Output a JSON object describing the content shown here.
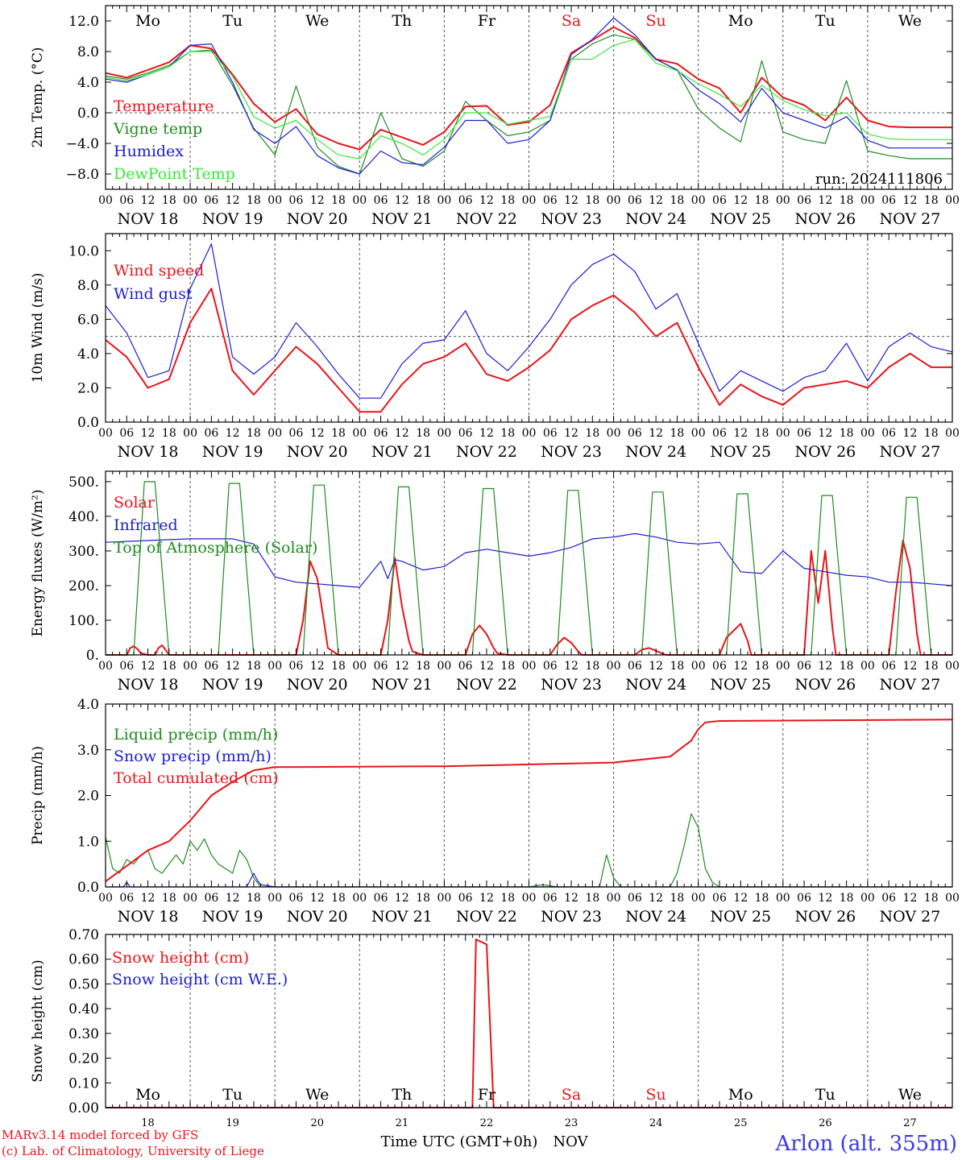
{
  "palette": {
    "red": "#e8141b",
    "green": "#1f8a1f",
    "blue": "#1c1ccf",
    "lime": "#38e838",
    "grid": "#555555",
    "axis": "#000000"
  },
  "days": [
    "Mo",
    "Tu",
    "We",
    "Th",
    "Fr",
    "Sa",
    "Su",
    "Mo",
    "Tu",
    "We"
  ],
  "weekend_days": [
    "Sa",
    "Su"
  ],
  "date_labels": [
    "NOV 18",
    "NOV 19",
    "NOV 20",
    "NOV 21",
    "NOV 22",
    "NOV 23",
    "NOV 24",
    "NOV 25",
    "NOV 26",
    "NOV 27"
  ],
  "hour_ticks": [
    "00",
    "06",
    "12",
    "18"
  ],
  "last_tick": "00",
  "bottom_day_numbers": [
    "18",
    "19",
    "20",
    "21",
    "22",
    "23",
    "24",
    "25",
    "26",
    "27"
  ],
  "bottom_month": "NOV",
  "xlabel": "Time UTC (GMT+0h)",
  "run_label": "run: 2024111806",
  "credits": [
    "MARv3.14 model forced by GFS",
    "(c) Lab. of Climatology, University of Liege"
  ],
  "station": "Arlon (alt. 355m)",
  "chart_data": [
    {
      "type": "line",
      "ylabel": "2m Temp. (°C)",
      "ylim": [
        -10,
        14
      ],
      "yticks": [
        12,
        8,
        4,
        0,
        -4,
        -8
      ],
      "yticklabels": [
        "12.0",
        "8.0",
        "4.0",
        "0.0",
        "−4.0",
        "−8.0"
      ],
      "ref_line": 0,
      "x": [
        0,
        6,
        12,
        18,
        24,
        30,
        36,
        42,
        48,
        54,
        60,
        66,
        72,
        78,
        84,
        90,
        96,
        102,
        108,
        114,
        120,
        126,
        132,
        138,
        144,
        150,
        156,
        162,
        168,
        174,
        180,
        186,
        192,
        198,
        204,
        210,
        216,
        222,
        228,
        234,
        240
      ],
      "series": [
        {
          "name": "Temperature",
          "color": "red",
          "values": [
            5.2,
            4.6,
            5.6,
            6.6,
            8.8,
            8.4,
            5.0,
            1.2,
            -1.2,
            0.5,
            -2.8,
            -4.0,
            -4.8,
            -2.2,
            -3.2,
            -4.2,
            -2.5,
            0.8,
            0.9,
            -1.6,
            -1.2,
            1.0,
            7.8,
            9.5,
            11.2,
            9.8,
            7.0,
            6.4,
            4.4,
            3.2,
            0.0,
            4.6,
            2.0,
            1.0,
            -1.0,
            2.0,
            -1.0,
            -1.8,
            -1.9,
            -1.9,
            -1.9
          ]
        },
        {
          "name": "Vigne temp",
          "color": "green",
          "values": [
            4.8,
            4.4,
            5.2,
            6.2,
            8.0,
            8.2,
            3.6,
            -2.0,
            -5.5,
            3.5,
            -4.5,
            -7.0,
            -8.0,
            0.0,
            -6.0,
            -7.0,
            -5.0,
            1.5,
            -1.0,
            -3.0,
            -2.5,
            -1.0,
            7.0,
            9.0,
            10.2,
            9.6,
            7.0,
            5.6,
            0.5,
            -2.0,
            -3.8,
            6.8,
            -2.5,
            -3.5,
            -4.0,
            4.2,
            -5.0,
            -5.6,
            -6.0,
            -6.0,
            -6.0
          ]
        },
        {
          "name": "Humidex",
          "color": "blue",
          "values": [
            4.4,
            4.0,
            5.0,
            6.0,
            8.8,
            9.0,
            4.0,
            -2.2,
            -4.0,
            -1.8,
            -5.6,
            -7.2,
            -8.0,
            -5.0,
            -6.5,
            -6.8,
            -4.5,
            -1.0,
            -1.0,
            -4.0,
            -3.5,
            -1.0,
            7.6,
            9.6,
            12.4,
            10.2,
            7.0,
            5.6,
            3.0,
            1.2,
            -1.2,
            3.2,
            0.0,
            -1.0,
            -2.0,
            -0.5,
            -3.6,
            -4.6,
            -4.6,
            -4.6,
            -4.6
          ]
        },
        {
          "name": "DewPoint Temp",
          "color": "lime",
          "values": [
            4.6,
            4.2,
            5.0,
            6.0,
            8.0,
            8.0,
            4.8,
            -0.5,
            -2.0,
            -1.0,
            -3.5,
            -5.5,
            -6.0,
            -3.0,
            -4.0,
            -5.5,
            -3.5,
            0.0,
            0.0,
            -1.5,
            -1.0,
            -0.5,
            7.0,
            7.0,
            8.8,
            9.6,
            6.5,
            5.5,
            3.8,
            2.4,
            0.8,
            3.6,
            1.6,
            0.4,
            -0.4,
            0.0,
            -2.8,
            -3.4,
            -3.5,
            -3.5,
            -3.5
          ]
        }
      ]
    },
    {
      "type": "line",
      "ylabel": "10m Wind (m/s)",
      "ylim": [
        0,
        11
      ],
      "yticks": [
        10,
        8,
        6,
        4,
        2,
        0
      ],
      "yticklabels": [
        "10.0",
        "8.0",
        "6.0",
        "4.0",
        "2.0",
        "0.0"
      ],
      "ref_line": 5,
      "x": [
        0,
        6,
        12,
        18,
        24,
        30,
        36,
        42,
        48,
        54,
        60,
        66,
        72,
        78,
        84,
        90,
        96,
        102,
        108,
        114,
        120,
        126,
        132,
        138,
        144,
        150,
        156,
        162,
        168,
        174,
        180,
        186,
        192,
        198,
        204,
        210,
        216,
        222,
        228,
        234,
        240
      ],
      "series": [
        {
          "name": "Wind speed",
          "color": "red",
          "values": [
            4.8,
            3.8,
            2.0,
            2.5,
            5.8,
            7.8,
            3.0,
            1.6,
            3.0,
            4.4,
            3.4,
            2.0,
            0.6,
            0.6,
            2.2,
            3.4,
            3.8,
            4.6,
            2.8,
            2.4,
            3.2,
            4.2,
            6.0,
            6.8,
            7.4,
            6.4,
            5.0,
            5.8,
            3.2,
            1.0,
            2.2,
            1.5,
            1.0,
            2.0,
            2.2,
            2.4,
            2.0,
            3.2,
            4.0,
            3.2,
            3.2
          ]
        },
        {
          "name": "Wind gust",
          "color": "blue",
          "values": [
            6.8,
            5.2,
            2.6,
            3.0,
            7.8,
            10.4,
            3.8,
            2.8,
            3.8,
            5.8,
            4.4,
            2.8,
            1.4,
            1.4,
            3.4,
            4.6,
            4.8,
            6.5,
            4.0,
            3.0,
            4.4,
            6.0,
            8.0,
            9.2,
            9.8,
            8.8,
            6.6,
            7.5,
            4.6,
            1.8,
            3.0,
            2.4,
            1.8,
            2.6,
            3.0,
            4.6,
            2.4,
            4.4,
            5.2,
            4.4,
            4.1
          ]
        }
      ]
    },
    {
      "type": "line",
      "ylabel": "Energy fluxes (W/m²)",
      "ylim": [
        0,
        530
      ],
      "yticks": [
        500,
        400,
        300,
        200,
        100,
        0
      ],
      "yticklabels": [
        "500.",
        "400.",
        "300.",
        "200.",
        "100.",
        "0."
      ],
      "series": [
        {
          "name": "Solar",
          "color": "red",
          "x": [
            0,
            6,
            7,
            8,
            9,
            10,
            12,
            14,
            15,
            16,
            17,
            18,
            48,
            54,
            56,
            58,
            60,
            62,
            63,
            66,
            72,
            78,
            80,
            82,
            84,
            86,
            87,
            90,
            96,
            102,
            104,
            106,
            108,
            110,
            111,
            114,
            120,
            126,
            128,
            130,
            132,
            134,
            135,
            138,
            144,
            150,
            152,
            154,
            156,
            158,
            159,
            162,
            168,
            174,
            176,
            178,
            180,
            182,
            183,
            186,
            192,
            198,
            200,
            202,
            204,
            206,
            207,
            210,
            216,
            222,
            224,
            226,
            228,
            230,
            231,
            234,
            240
          ],
          "values": [
            0,
            0,
            20,
            25,
            18,
            5,
            0,
            0,
            20,
            28,
            15,
            0,
            0,
            0,
            100,
            270,
            220,
            90,
            20,
            0,
            0,
            0,
            100,
            280,
            140,
            40,
            10,
            0,
            0,
            0,
            60,
            85,
            60,
            20,
            5,
            0,
            0,
            0,
            30,
            50,
            35,
            10,
            0,
            0,
            0,
            0,
            15,
            20,
            12,
            3,
            0,
            0,
            0,
            0,
            50,
            70,
            90,
            40,
            0,
            0,
            0,
            0,
            300,
            150,
            300,
            80,
            0,
            0,
            0,
            0,
            180,
            330,
            250,
            60,
            0,
            0,
            0
          ]
        },
        {
          "name": "Infrared",
          "color": "blue",
          "x": [
            0,
            12,
            24,
            36,
            42,
            48,
            54,
            60,
            66,
            72,
            78,
            80,
            82,
            84,
            90,
            96,
            102,
            108,
            114,
            120,
            126,
            132,
            138,
            144,
            150,
            156,
            162,
            168,
            174,
            180,
            186,
            192,
            198,
            204,
            210,
            216,
            222,
            228,
            234,
            240
          ],
          "values": [
            325,
            330,
            335,
            335,
            320,
            225,
            210,
            205,
            200,
            195,
            270,
            220,
            275,
            270,
            245,
            255,
            295,
            305,
            295,
            285,
            295,
            310,
            335,
            340,
            350,
            340,
            325,
            320,
            325,
            240,
            235,
            300,
            250,
            240,
            230,
            225,
            210,
            210,
            205,
            200
          ]
        },
        {
          "name": "Top of Atmosphere (Solar)",
          "color": "green",
          "x": [
            0,
            8,
            11,
            14,
            18,
            32,
            35,
            38,
            42,
            56,
            59,
            62,
            66,
            80,
            83,
            86,
            90,
            104,
            107,
            110,
            114,
            128,
            131,
            134,
            138,
            152,
            155,
            158,
            162,
            176,
            179,
            182,
            186,
            200,
            203,
            206,
            210,
            224,
            227,
            230,
            234,
            240
          ],
          "values": [
            0,
            0,
            500,
            500,
            0,
            0,
            495,
            495,
            0,
            0,
            490,
            490,
            0,
            0,
            485,
            485,
            0,
            0,
            480,
            480,
            0,
            0,
            475,
            475,
            0,
            0,
            470,
            470,
            0,
            0,
            465,
            465,
            0,
            0,
            460,
            460,
            0,
            0,
            455,
            455,
            0,
            0
          ]
        }
      ]
    },
    {
      "type": "line",
      "ylabel": "Precip (mm/h)",
      "ylim": [
        0,
        4
      ],
      "yticks": [
        4,
        3,
        2,
        1,
        0
      ],
      "yticklabels": [
        "4.0",
        "3.0",
        "2.0",
        "1.0",
        "0.0"
      ],
      "series": [
        {
          "name": "Liquid precip (mm/h)",
          "color": "green",
          "x": [
            0,
            2,
            4,
            6,
            8,
            10,
            12,
            14,
            16,
            18,
            20,
            22,
            24,
            26,
            28,
            30,
            32,
            34,
            36,
            38,
            40,
            42,
            44,
            48,
            120,
            124,
            128,
            140,
            142,
            144,
            146,
            160,
            162,
            164,
            166,
            168,
            170,
            172,
            174,
            240
          ],
          "values": [
            1.1,
            0.4,
            0.3,
            0.6,
            0.5,
            0.7,
            0.8,
            0.4,
            0.3,
            0.5,
            0.7,
            0.5,
            1.0,
            0.8,
            1.05,
            0.7,
            0.5,
            0.4,
            0.3,
            0.8,
            0.6,
            0.2,
            0.0,
            0.0,
            0.0,
            0.05,
            0.0,
            0.0,
            0.7,
            0.2,
            0.0,
            0.0,
            0.3,
            0.9,
            1.6,
            1.3,
            0.4,
            0.1,
            0.0,
            0.0
          ]
        },
        {
          "name": "Snow precip (mm/h)",
          "color": "blue",
          "x": [
            0,
            5,
            6,
            7,
            18,
            40,
            42,
            43,
            44,
            48,
            240
          ],
          "values": [
            0,
            0,
            0.1,
            0,
            0,
            0,
            0.3,
            0.15,
            0.05,
            0,
            0
          ]
        },
        {
          "name": "Total cumulated (cm)",
          "color": "red",
          "x": [
            0,
            12,
            18,
            24,
            30,
            36,
            42,
            48,
            96,
            144,
            160,
            166,
            168,
            170,
            174,
            240
          ],
          "values": [
            0.12,
            0.8,
            1.0,
            1.45,
            2.0,
            2.3,
            2.55,
            2.62,
            2.64,
            2.72,
            2.85,
            3.2,
            3.45,
            3.6,
            3.63,
            3.66
          ]
        }
      ]
    },
    {
      "type": "line",
      "ylabel": "Snow height (cm)",
      "ylim": [
        0,
        0.7
      ],
      "yticks": [
        0.7,
        0.6,
        0.5,
        0.4,
        0.3,
        0.2,
        0.1,
        0
      ],
      "yticklabels": [
        "0.70",
        "0.60",
        "0.50",
        "0.40",
        "0.30",
        "0.20",
        "0.10",
        "0.00"
      ],
      "series": [
        {
          "name": "Snow height (cm)",
          "color": "red",
          "x": [
            0,
            104,
            105,
            108,
            110,
            240
          ],
          "values": [
            0,
            0,
            0.68,
            0.66,
            0,
            0
          ]
        },
        {
          "name": "Snow height (cm W.E.)",
          "color": "blue",
          "x": [
            0,
            240
          ],
          "values": [
            0,
            0
          ]
        }
      ]
    }
  ]
}
